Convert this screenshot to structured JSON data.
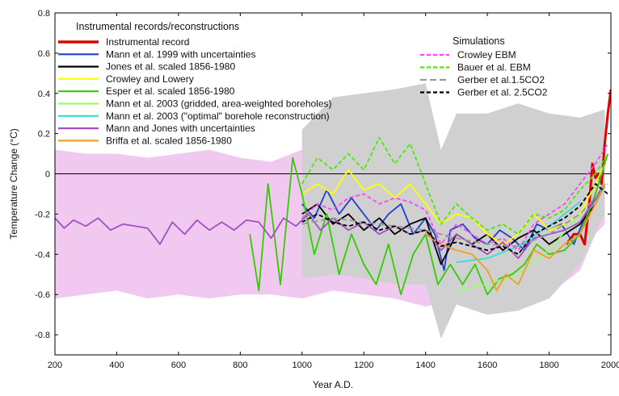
{
  "chart_data": {
    "type": "line",
    "xlabel": "Year A.D.",
    "ylabel": "Temperature Change (°C)",
    "xlim": [
      200,
      2000
    ],
    "ylim": [
      -0.9,
      0.8
    ],
    "xticks": [
      200,
      400,
      600,
      800,
      1000,
      1200,
      1400,
      1600,
      1800,
      2000
    ],
    "yticks": [
      -0.8,
      -0.6,
      -0.4,
      -0.2,
      0,
      0.2,
      0.4,
      0.6,
      0.8
    ],
    "legend_groups": [
      {
        "title": "Instrumental records/reconstructions",
        "placement": "top-left"
      },
      {
        "title": "Simulations",
        "placement": "top-right"
      }
    ],
    "uncertainty_bands": [
      {
        "name": "Mann and Jones with uncertainties",
        "color": "#f0c8f0",
        "x": [
          200,
          300,
          400,
          500,
          600,
          700,
          800,
          900,
          1000,
          1100,
          1200,
          1300,
          1400,
          1500,
          1600,
          1700,
          1800,
          1900,
          1950,
          1980
        ],
        "lower": [
          -0.62,
          -0.6,
          -0.58,
          -0.62,
          -0.6,
          -0.62,
          -0.6,
          -0.6,
          -0.62,
          -0.58,
          -0.6,
          -0.62,
          -0.66,
          -0.62,
          -0.7,
          -0.68,
          -0.6,
          -0.48,
          -0.3,
          -0.25
        ],
        "upper": [
          0.12,
          0.1,
          0.1,
          0.08,
          0.1,
          0.12,
          0.08,
          0.06,
          0.12,
          0.14,
          0.2,
          0.12,
          0.06,
          0.08,
          0.06,
          0.04,
          0.08,
          0.15,
          0.28,
          0.3
        ]
      },
      {
        "name": "Mann et al. 1999 with uncertainties",
        "color": "#d0d0d0",
        "x": [
          1000,
          1100,
          1200,
          1300,
          1400,
          1450,
          1500,
          1600,
          1700,
          1800,
          1900,
          1980
        ],
        "lower": [
          -0.52,
          -0.5,
          -0.52,
          -0.55,
          -0.55,
          -0.82,
          -0.65,
          -0.7,
          -0.68,
          -0.62,
          -0.45,
          -0.2
        ],
        "upper": [
          0.22,
          0.38,
          0.4,
          0.42,
          0.45,
          0.12,
          0.3,
          0.3,
          0.35,
          0.3,
          0.28,
          0.32
        ]
      }
    ],
    "series": [
      {
        "name": "Instrumental record",
        "group": 0,
        "color": "#e00000",
        "width": 3,
        "dash": "",
        "x": [
          1856,
          1880,
          1900,
          1915,
          1930,
          1940,
          1950,
          1960,
          1970,
          1980,
          1990,
          2000
        ],
        "y": [
          -0.35,
          -0.3,
          -0.3,
          -0.35,
          -0.15,
          0.05,
          -0.02,
          0.0,
          -0.05,
          0.15,
          0.3,
          0.42
        ]
      },
      {
        "name": "Mann et al. 1999 with uncertainties",
        "group": 0,
        "color": "#1f3fd0",
        "width": 1.8,
        "dash": "",
        "x": [
          1000,
          1040,
          1080,
          1120,
          1160,
          1200,
          1240,
          1280,
          1320,
          1360,
          1400,
          1430,
          1460,
          1480,
          1520,
          1560,
          1600,
          1640,
          1680,
          1720,
          1760,
          1800,
          1840,
          1880,
          1920,
          1960,
          1980
        ],
        "y": [
          -0.15,
          -0.22,
          -0.08,
          -0.2,
          -0.12,
          -0.2,
          -0.28,
          -0.2,
          -0.15,
          -0.3,
          -0.22,
          -0.3,
          -0.48,
          -0.28,
          -0.25,
          -0.32,
          -0.35,
          -0.28,
          -0.32,
          -0.38,
          -0.25,
          -0.28,
          -0.25,
          -0.35,
          -0.2,
          -0.1,
          -0.05
        ]
      },
      {
        "name": "Jones et al. scaled 1856-1980",
        "group": 0,
        "color": "#000000",
        "width": 1.8,
        "dash": "",
        "x": [
          1000,
          1050,
          1100,
          1150,
          1200,
          1250,
          1300,
          1350,
          1400,
          1450,
          1500,
          1550,
          1600,
          1650,
          1700,
          1750,
          1800,
          1850,
          1900,
          1950,
          1980
        ],
        "y": [
          -0.2,
          -0.15,
          -0.25,
          -0.2,
          -0.28,
          -0.22,
          -0.3,
          -0.25,
          -0.22,
          -0.45,
          -0.3,
          -0.35,
          -0.3,
          -0.38,
          -0.32,
          -0.28,
          -0.35,
          -0.3,
          -0.25,
          -0.15,
          -0.05
        ]
      },
      {
        "name": "Crowley and Lowery",
        "group": 0,
        "color": "#ffff00",
        "width": 1.8,
        "dash": "",
        "x": [
          1000,
          1050,
          1100,
          1150,
          1200,
          1250,
          1300,
          1350,
          1400,
          1450,
          1500,
          1550,
          1600,
          1650,
          1700,
          1750,
          1800,
          1850,
          1900,
          1950,
          1980
        ],
        "y": [
          -0.1,
          -0.05,
          -0.1,
          0.02,
          -0.08,
          -0.05,
          -0.12,
          -0.05,
          -0.15,
          -0.25,
          -0.2,
          -0.22,
          -0.3,
          -0.35,
          -0.3,
          -0.2,
          -0.28,
          -0.25,
          -0.2,
          -0.05,
          0.05
        ]
      },
      {
        "name": "Esper et al. scaled 1856-1980",
        "group": 0,
        "color": "#33cc00",
        "width": 1.8,
        "dash": "",
        "x": [
          831,
          860,
          890,
          930,
          970,
          1000,
          1040,
          1080,
          1120,
          1160,
          1200,
          1240,
          1280,
          1320,
          1360,
          1400,
          1440,
          1480,
          1520,
          1560,
          1600,
          1640,
          1680,
          1720,
          1760,
          1800,
          1850,
          1900,
          1950,
          1990
        ],
        "y": [
          -0.3,
          -0.58,
          -0.05,
          -0.55,
          0.08,
          -0.1,
          -0.4,
          -0.2,
          -0.5,
          -0.3,
          -0.45,
          -0.55,
          -0.35,
          -0.6,
          -0.4,
          -0.3,
          -0.55,
          -0.45,
          -0.55,
          -0.45,
          -0.6,
          -0.52,
          -0.5,
          -0.45,
          -0.35,
          -0.4,
          -0.38,
          -0.3,
          -0.1,
          0.1
        ]
      },
      {
        "name": "Mann et al. 2003 (gridded, area-weighted boreholes)",
        "group": 0,
        "color": "#99ff66",
        "width": 1.5,
        "dash": "",
        "x": [
          1500,
          1600,
          1700,
          1800,
          1900
        ],
        "y": [
          -0.58,
          -0.55,
          -0.5,
          -0.38,
          -0.2
        ]
      },
      {
        "name": "Mann et al. 2003 (\"optimal\" borehole reconstruction)",
        "group": 0,
        "color": "#33dddd",
        "width": 1.8,
        "dash": "",
        "x": [
          1500,
          1600,
          1700,
          1800,
          1900
        ],
        "y": [
          -0.44,
          -0.42,
          -0.36,
          -0.26,
          -0.14
        ]
      },
      {
        "name": "Mann and Jones with uncertainties",
        "group": 0,
        "color": "#a050c0",
        "width": 1.8,
        "dash": "",
        "x": [
          200,
          230,
          260,
          300,
          340,
          380,
          420,
          460,
          500,
          540,
          580,
          620,
          660,
          700,
          740,
          780,
          820,
          860,
          900,
          940,
          980,
          1020,
          1060,
          1100,
          1150,
          1200,
          1250,
          1300,
          1350,
          1400,
          1450,
          1500,
          1550,
          1600,
          1650,
          1700,
          1750,
          1800,
          1850,
          1900,
          1950,
          1980
        ],
        "y": [
          -0.22,
          -0.27,
          -0.23,
          -0.26,
          -0.22,
          -0.28,
          -0.25,
          -0.26,
          -0.27,
          -0.35,
          -0.24,
          -0.3,
          -0.23,
          -0.28,
          -0.24,
          -0.28,
          -0.23,
          -0.24,
          -0.32,
          -0.22,
          -0.26,
          -0.2,
          -0.28,
          -0.22,
          -0.28,
          -0.24,
          -0.3,
          -0.26,
          -0.3,
          -0.28,
          -0.38,
          -0.3,
          -0.35,
          -0.4,
          -0.34,
          -0.42,
          -0.32,
          -0.3,
          -0.28,
          -0.24,
          -0.12,
          -0.05
        ]
      },
      {
        "name": "Briffa et al. scaled 1856-1980",
        "group": 0,
        "color": "#f0a020",
        "width": 1.8,
        "dash": "",
        "x": [
          1400,
          1450,
          1500,
          1550,
          1600,
          1630,
          1660,
          1700,
          1750,
          1800,
          1850,
          1900,
          1950,
          1980
        ],
        "y": [
          -0.3,
          -0.35,
          -0.38,
          -0.4,
          -0.48,
          -0.58,
          -0.5,
          -0.55,
          -0.38,
          -0.42,
          -0.35,
          -0.3,
          -0.15,
          -0.05
        ]
      },
      {
        "name": "Crowley EBM",
        "group": 1,
        "color": "#ff44ff",
        "width": 1.8,
        "dash": "5,3",
        "x": [
          1000,
          1050,
          1100,
          1150,
          1200,
          1250,
          1300,
          1350,
          1400,
          1450,
          1500,
          1550,
          1600,
          1650,
          1700,
          1750,
          1800,
          1850,
          1900,
          1950,
          1990
        ],
        "y": [
          -0.22,
          -0.15,
          -0.18,
          -0.12,
          -0.1,
          -0.15,
          -0.12,
          -0.14,
          -0.18,
          -0.35,
          -0.25,
          -0.3,
          -0.35,
          -0.32,
          -0.38,
          -0.25,
          -0.2,
          -0.15,
          -0.05,
          0.05,
          0.15
        ]
      },
      {
        "name": "Bauer et al. EBM",
        "group": 1,
        "color": "#44ee00",
        "width": 1.8,
        "dash": "5,3",
        "x": [
          1000,
          1050,
          1100,
          1150,
          1200,
          1250,
          1300,
          1350,
          1400,
          1450,
          1500,
          1550,
          1600,
          1650,
          1700,
          1750,
          1800,
          1850,
          1900,
          1950,
          1990
        ],
        "y": [
          -0.05,
          0.08,
          0.02,
          0.1,
          0.02,
          0.18,
          0.05,
          0.15,
          -0.05,
          -0.25,
          -0.15,
          -0.22,
          -0.28,
          -0.25,
          -0.3,
          -0.2,
          -0.22,
          -0.18,
          -0.08,
          0.0,
          0.1
        ]
      },
      {
        "name": "Gerber et al.1.5CO2",
        "group": 1,
        "color": "#999999",
        "width": 1.8,
        "dash": "8,4",
        "x": [
          1000,
          1100,
          1200,
          1300,
          1400,
          1500,
          1600,
          1700,
          1800,
          1900,
          1990
        ],
        "y": [
          -0.25,
          -0.22,
          -0.24,
          -0.26,
          -0.28,
          -0.32,
          -0.35,
          -0.36,
          -0.3,
          -0.2,
          -0.05
        ]
      },
      {
        "name": "Gerber et al. 2.5CO2",
        "group": 1,
        "color": "#000000",
        "width": 1.8,
        "dash": "5,3",
        "x": [
          1000,
          1050,
          1100,
          1150,
          1200,
          1250,
          1300,
          1350,
          1400,
          1450,
          1500,
          1550,
          1600,
          1650,
          1700,
          1750,
          1800,
          1850,
          1900,
          1950,
          1990
        ],
        "y": [
          -0.24,
          -0.2,
          -0.24,
          -0.26,
          -0.24,
          -0.28,
          -0.26,
          -0.3,
          -0.28,
          -0.36,
          -0.34,
          -0.36,
          -0.38,
          -0.36,
          -0.4,
          -0.3,
          -0.26,
          -0.22,
          -0.16,
          -0.05,
          -0.1
        ]
      }
    ]
  }
}
